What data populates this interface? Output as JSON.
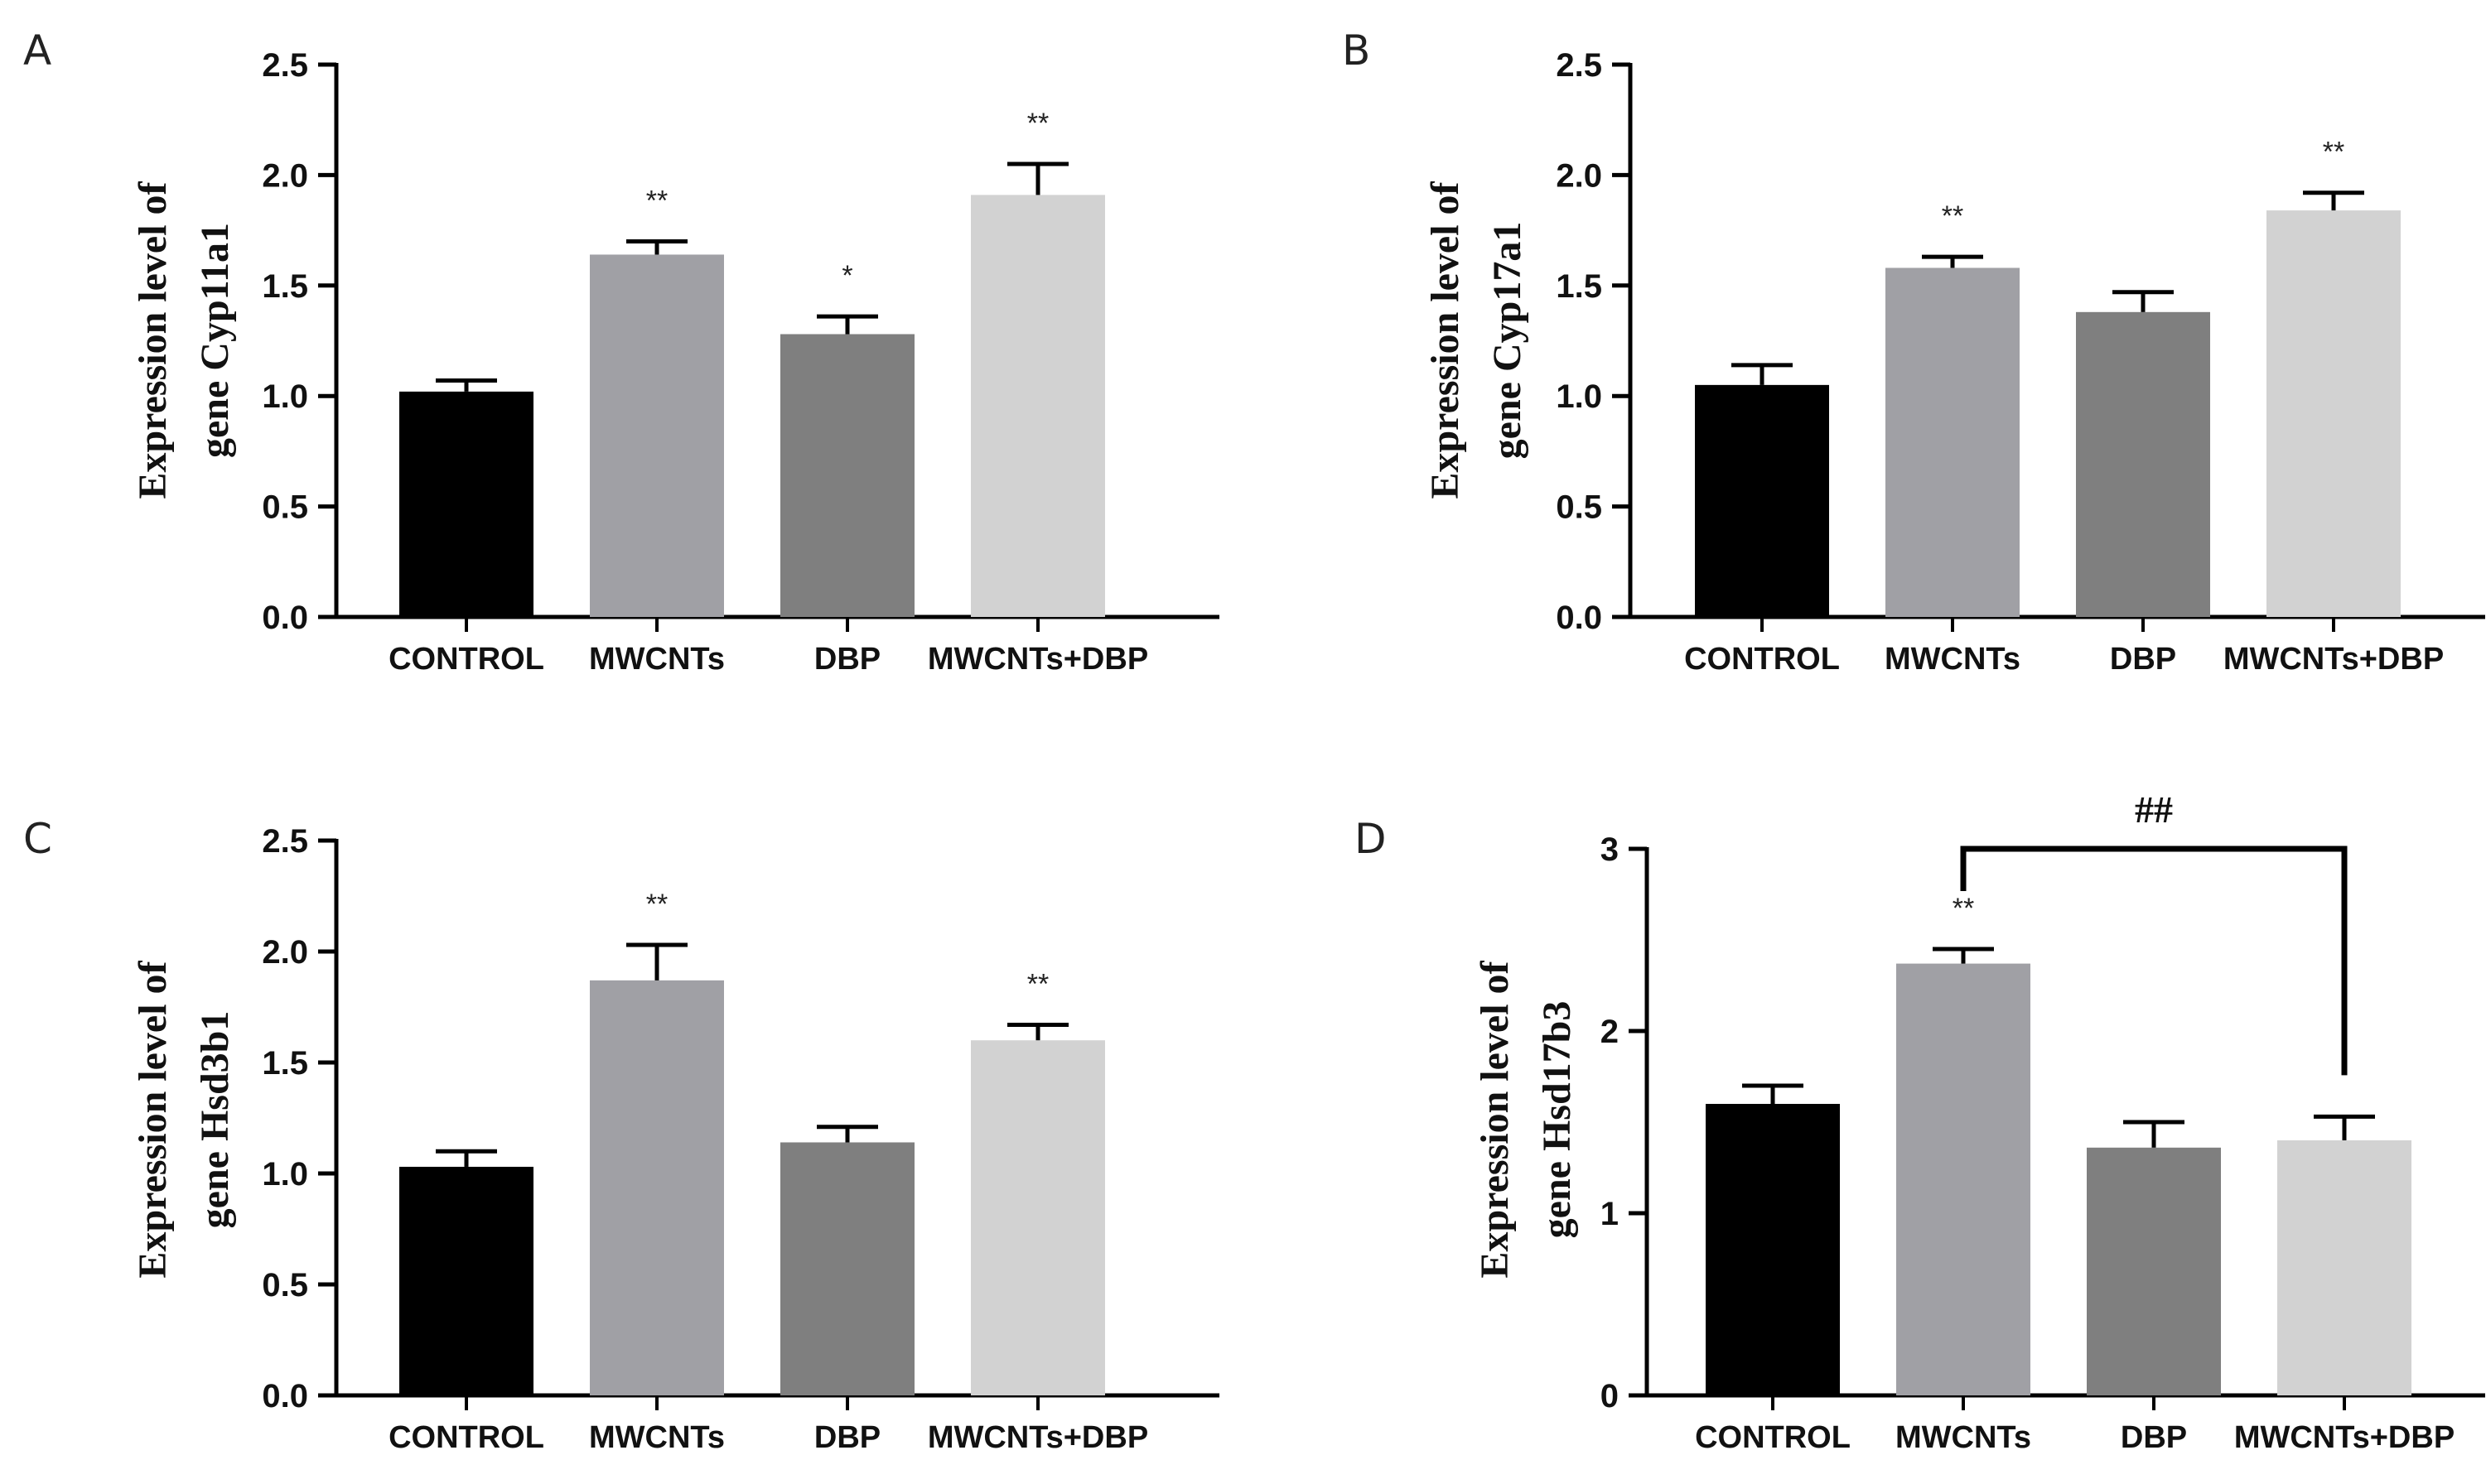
{
  "chart_data": [
    {
      "type": "bar",
      "panel": "A",
      "categories": [
        "CONTROL",
        "MWCNTs",
        "DBP",
        "MWCNTs+DBP"
      ],
      "values": [
        1.02,
        1.64,
        1.28,
        1.91
      ],
      "errors": [
        0.05,
        0.06,
        0.08,
        0.14
      ],
      "significance": [
        "",
        "**",
        "*",
        "**"
      ],
      "colors": [
        "#000000",
        "#a0a0a5",
        "#7f7f7f",
        "#d2d2d2"
      ],
      "ylabel_line1": "Expression level of",
      "ylabel_line2": "gene Cyp11a1",
      "ylim": [
        0,
        2.5
      ],
      "yticks": [
        0,
        0.5,
        1.0,
        1.5,
        2.0,
        2.5
      ],
      "ytick_labels": [
        "0.0",
        "0.5",
        "1.0",
        "1.5",
        "2.0",
        "2.5"
      ]
    },
    {
      "type": "bar",
      "panel": "B",
      "categories": [
        "CONTROL",
        "MWCNTs",
        "DBP",
        "MWCNTs+DBP"
      ],
      "values": [
        1.05,
        1.58,
        1.38,
        1.84
      ],
      "errors": [
        0.09,
        0.05,
        0.09,
        0.08
      ],
      "significance": [
        "",
        "**",
        "",
        "**"
      ],
      "colors": [
        "#000000",
        "#a0a0a5",
        "#7f7f7f",
        "#d2d2d2"
      ],
      "ylabel_line1": "Expression level of",
      "ylabel_line2": "gene Cyp17a1",
      "ylim": [
        0,
        2.5
      ],
      "yticks": [
        0,
        0.5,
        1.0,
        1.5,
        2.0,
        2.5
      ],
      "ytick_labels": [
        "0.0",
        "0.5",
        "1.0",
        "1.5",
        "2.0",
        "2.5"
      ]
    },
    {
      "type": "bar",
      "panel": "C",
      "categories": [
        "CONTROL",
        "MWCNTs",
        "DBP",
        "MWCNTs+DBP"
      ],
      "values": [
        1.03,
        1.87,
        1.14,
        1.6
      ],
      "errors": [
        0.07,
        0.16,
        0.07,
        0.07
      ],
      "significance": [
        "",
        "**",
        "",
        "**"
      ],
      "colors": [
        "#000000",
        "#a0a0a5",
        "#7f7f7f",
        "#d2d2d2"
      ],
      "ylabel_line1": "Expression level of",
      "ylabel_line2": "gene Hsd3b1",
      "ylim": [
        0,
        2.5
      ],
      "yticks": [
        0,
        0.5,
        1.0,
        1.5,
        2.0,
        2.5
      ],
      "ytick_labels": [
        "0.0",
        "0.5",
        "1.0",
        "1.5",
        "2.0",
        "2.5"
      ]
    },
    {
      "type": "bar",
      "panel": "D",
      "categories": [
        "CONTROL",
        "MWCNTs",
        "DBP",
        "MWCNTs+DBP"
      ],
      "values": [
        1.6,
        2.37,
        1.36,
        1.4
      ],
      "errors": [
        0.1,
        0.08,
        0.14,
        0.13
      ],
      "significance": [
        "",
        "**",
        "",
        ""
      ],
      "colors": [
        "#000000",
        "#a0a0a5",
        "#7f7f7f",
        "#d2d2d2"
      ],
      "ylabel_line1": "Expression level of",
      "ylabel_line2": "gene Hsd17b3",
      "ylim": [
        0,
        3
      ],
      "yticks": [
        0,
        1,
        2,
        3
      ],
      "ytick_labels": [
        "0",
        "1",
        "2",
        "3"
      ],
      "bracket": {
        "from": 1,
        "to": 3,
        "label": "##",
        "y": 3.0
      }
    }
  ]
}
